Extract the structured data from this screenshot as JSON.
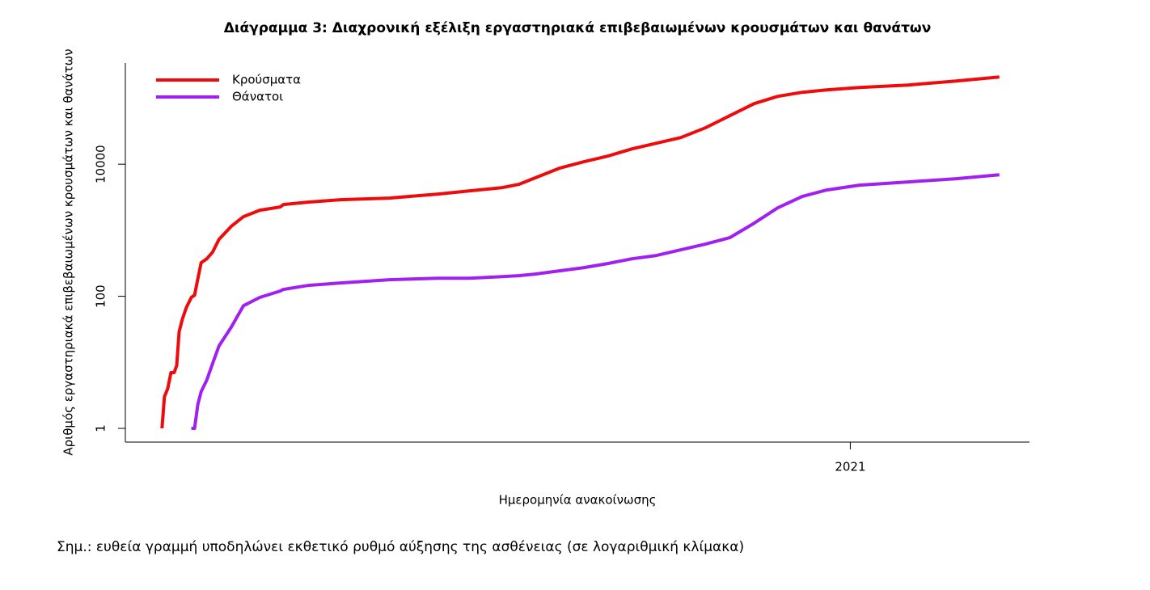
{
  "chart_data": {
    "type": "line",
    "title": "Διάγραμμα 3: Διαχρονική εξέλιξη εργαστηριακά επιβεβαιωμένων κρουσμάτων και θανάτων",
    "x_label": "Ημερομηνία ανακοίνωσης",
    "y_label": "Αριθμός εργαστηριακά επιβεβαιωμένων κρουσμάτων και θανάτων",
    "note": "Σημ.: ευθεία γραμμή υποδηλώνει εκθετικό ρυθμό αύξησης της ασθένειας (σε λογαριθμική κλίμακα)",
    "y_log": true,
    "legend": "top-left",
    "xlim": [
      2020.11,
      2021.22
    ],
    "xticks": [
      2021
    ],
    "ylim": [
      0.62,
      340000
    ],
    "yticks": [
      1,
      100,
      10000
    ],
    "x": [
      2020.155,
      2020.158,
      2020.162,
      2020.166,
      2020.17,
      2020.173,
      2020.176,
      2020.18,
      2020.185,
      2020.191,
      2020.195,
      2020.199,
      2020.203,
      2020.21,
      2020.217,
      2020.225,
      2020.24,
      2020.255,
      2020.275,
      2020.3,
      2020.304,
      2020.334,
      2020.374,
      2020.434,
      2020.494,
      2020.533,
      2020.573,
      2020.593,
      2020.613,
      2020.643,
      2020.673,
      2020.702,
      2020.732,
      2020.762,
      2020.792,
      2020.822,
      2020.852,
      2020.882,
      2020.911,
      2020.941,
      2020.971,
      2021.011,
      2021.071,
      2021.13,
      2021.183
    ],
    "series": [
      {
        "name": "Κρούσματα",
        "color": "#ee0b0b",
        "values": [
          1,
          3,
          4,
          7,
          7,
          9,
          29,
          45,
          68,
          96,
          104,
          183,
          322,
          370,
          464,
          728,
          1143,
          1603,
          2009,
          2249,
          2445,
          2661,
          2897,
          3063,
          3526,
          3950,
          4420,
          4946,
          6200,
          8690,
          10890,
          13250,
          17070,
          20790,
          25330,
          35500,
          54200,
          82600,
          106600,
          122700,
          133400,
          145300,
          158000,
          182000,
          209000
        ]
      },
      {
        "name": "Θάνατοι",
        "color": "#a020f0",
        "values": [
          null,
          null,
          null,
          null,
          null,
          null,
          null,
          null,
          null,
          1,
          1,
          2.3,
          3.6,
          5.4,
          9.5,
          17.7,
          34,
          72,
          96,
          120,
          127,
          146,
          159,
          178,
          188,
          188,
          199,
          205,
          217,
          243,
          272,
          313,
          370,
          415,
          505,
          615,
          771,
          1279,
          2184,
          3244,
          4061,
          4810,
          5385,
          6030,
          6930
        ]
      }
    ]
  }
}
